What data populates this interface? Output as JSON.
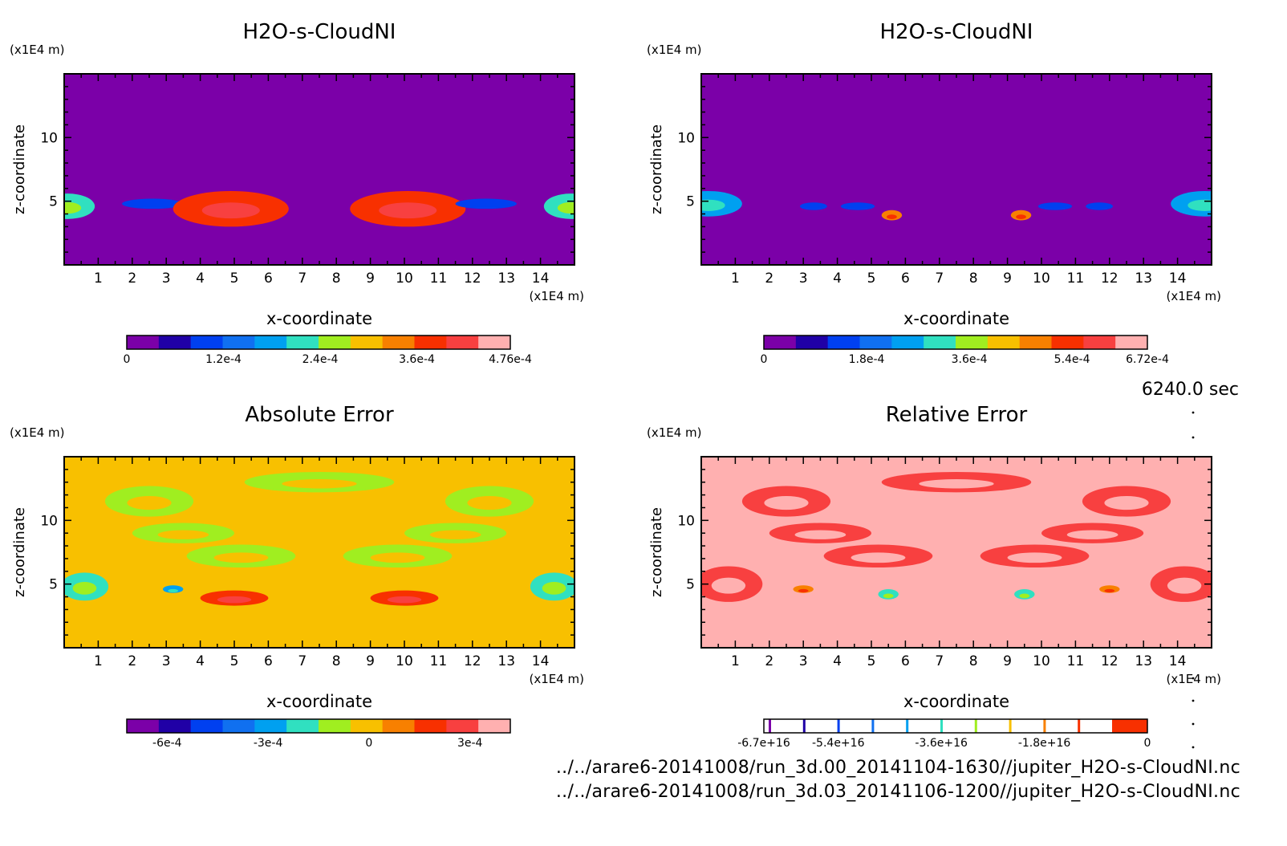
{
  "time_label": "6240.0 sec",
  "file_paths": [
    "../../arare6-20141008/run_3d.00_20141104-1630//jupiter_H2O-s-CloudNI.nc",
    "../../arare6-20141008/run_3d.03_20141106-1200//jupiter_H2O-s-CloudNI.nc"
  ],
  "chart_data": [
    {
      "type": "heatmap",
      "title": "H2O-s-CloudNI",
      "xlabel": "x-coordinate",
      "ylabel": "z-coordinate",
      "x_unit": "(x1E4 m)",
      "y_unit": "(x1E4 m)",
      "xlim": [
        0,
        15
      ],
      "ylim": [
        0,
        15
      ],
      "x_ticks": [
        1,
        2,
        3,
        4,
        5,
        6,
        7,
        8,
        9,
        10,
        11,
        12,
        13,
        14
      ],
      "y_ticks": [
        5,
        10
      ],
      "background_color": "#7b00a8",
      "colorbar": {
        "colors": [
          "#7b00a8",
          "#2000a6",
          "#0040f0",
          "#1070f0",
          "#00a0f0",
          "#30e0c0",
          "#a0ee20",
          "#f8c000",
          "#f88000",
          "#f83000",
          "#f84040",
          "#ffb0b0"
        ],
        "tick_labels": [
          "0",
          "1.2e-4",
          "2.4e-4",
          "3.6e-4",
          "4.76e-4"
        ],
        "tick_values": [
          0,
          0.00012,
          0.00024,
          0.00036,
          0.000476
        ],
        "range": [
          0,
          0.000476
        ]
      },
      "features": [
        {
          "x": 0.1,
          "z": 4.6,
          "rx": 0.8,
          "rz": 1.0,
          "level": 5
        },
        {
          "x": 2.6,
          "z": 4.8,
          "rx": 0.9,
          "rz": 0.4,
          "level": 2
        },
        {
          "x": 4.9,
          "z": 4.4,
          "rx": 1.7,
          "rz": 1.4,
          "level": 9
        },
        {
          "x": 10.1,
          "z": 4.4,
          "rx": 1.7,
          "rz": 1.4,
          "level": 9
        },
        {
          "x": 12.4,
          "z": 4.8,
          "rx": 0.9,
          "rz": 0.4,
          "level": 2
        },
        {
          "x": 14.9,
          "z": 4.6,
          "rx": 0.8,
          "rz": 1.0,
          "level": 5
        }
      ]
    },
    {
      "type": "heatmap",
      "title": "H2O-s-CloudNI",
      "xlabel": "x-coordinate",
      "ylabel": "z-coordinate",
      "x_unit": "(x1E4 m)",
      "y_unit": "(x1E4 m)",
      "xlim": [
        0,
        15
      ],
      "ylim": [
        0,
        15
      ],
      "x_ticks": [
        1,
        2,
        3,
        4,
        5,
        6,
        7,
        8,
        9,
        10,
        11,
        12,
        13,
        14
      ],
      "y_ticks": [
        5,
        10
      ],
      "background_color": "#7b00a8",
      "colorbar": {
        "colors": [
          "#7b00a8",
          "#2000a6",
          "#0040f0",
          "#1070f0",
          "#00a0f0",
          "#30e0c0",
          "#a0ee20",
          "#f8c000",
          "#f88000",
          "#f83000",
          "#f84040",
          "#ffb0b0"
        ],
        "tick_labels": [
          "0",
          "1.8e-4",
          "3.6e-4",
          "5.4e-4",
          "6.72e-4"
        ],
        "tick_values": [
          0,
          0.00018,
          0.00036,
          0.00054,
          0.000672
        ],
        "range": [
          0,
          0.000672
        ]
      },
      "features": [
        {
          "x": 0.2,
          "z": 4.8,
          "rx": 1.0,
          "rz": 1.0,
          "level": 4
        },
        {
          "x": 3.3,
          "z": 4.6,
          "rx": 0.4,
          "rz": 0.3,
          "level": 2
        },
        {
          "x": 4.6,
          "z": 4.6,
          "rx": 0.5,
          "rz": 0.3,
          "level": 2
        },
        {
          "x": 5.6,
          "z": 3.9,
          "rx": 0.3,
          "rz": 0.4,
          "level": 8
        },
        {
          "x": 9.4,
          "z": 3.9,
          "rx": 0.3,
          "rz": 0.4,
          "level": 8
        },
        {
          "x": 10.4,
          "z": 4.6,
          "rx": 0.5,
          "rz": 0.3,
          "level": 2
        },
        {
          "x": 11.7,
          "z": 4.6,
          "rx": 0.4,
          "rz": 0.3,
          "level": 2
        },
        {
          "x": 14.8,
          "z": 4.8,
          "rx": 1.0,
          "rz": 1.0,
          "level": 4
        }
      ]
    },
    {
      "type": "heatmap",
      "title": "Absolute Error",
      "xlabel": "x-coordinate",
      "ylabel": "z-coordinate",
      "x_unit": "(x1E4 m)",
      "y_unit": "(x1E4 m)",
      "xlim": [
        0,
        15
      ],
      "ylim": [
        0,
        15
      ],
      "x_ticks": [
        1,
        2,
        3,
        4,
        5,
        6,
        7,
        8,
        9,
        10,
        11,
        12,
        13,
        14
      ],
      "y_ticks": [
        5,
        10
      ],
      "background_color": "#f8c000",
      "colorbar": {
        "colors": [
          "#7b00a8",
          "#2000a6",
          "#0040f0",
          "#1070f0",
          "#00a0f0",
          "#30e0c0",
          "#a0ee20",
          "#f8c000",
          "#f88000",
          "#f83000",
          "#f84040",
          "#ffb0b0"
        ],
        "tick_labels": [
          "-6e-4",
          "-3e-4",
          "0",
          "3e-4"
        ],
        "tick_values": [
          -0.0006,
          -0.0003,
          0,
          0.0003
        ],
        "range": [
          -0.00072,
          0.00042
        ]
      },
      "features": [
        {
          "x": 2.5,
          "z": 11.5,
          "rx": 1.3,
          "rz": 1.2,
          "level": 6
        },
        {
          "x": 3.5,
          "z": 9.0,
          "rx": 1.5,
          "rz": 0.8,
          "level": 6
        },
        {
          "x": 5.2,
          "z": 7.2,
          "rx": 1.6,
          "rz": 0.9,
          "level": 6
        },
        {
          "x": 7.5,
          "z": 13.0,
          "rx": 2.2,
          "rz": 0.8,
          "level": 6
        },
        {
          "x": 9.8,
          "z": 7.2,
          "rx": 1.6,
          "rz": 0.9,
          "level": 6
        },
        {
          "x": 11.5,
          "z": 9.0,
          "rx": 1.5,
          "rz": 0.8,
          "level": 6
        },
        {
          "x": 12.5,
          "z": 11.5,
          "rx": 1.3,
          "rz": 1.2,
          "level": 6
        },
        {
          "x": 0.6,
          "z": 4.8,
          "rx": 0.7,
          "rz": 1.1,
          "level": 5
        },
        {
          "x": 3.2,
          "z": 4.6,
          "rx": 0.3,
          "rz": 0.3,
          "level": 4
        },
        {
          "x": 5.0,
          "z": 3.9,
          "rx": 1.0,
          "rz": 0.6,
          "level": 9
        },
        {
          "x": 10.0,
          "z": 3.9,
          "rx": 1.0,
          "rz": 0.6,
          "level": 9
        },
        {
          "x": 14.4,
          "z": 4.8,
          "rx": 0.7,
          "rz": 1.1,
          "level": 5
        }
      ]
    },
    {
      "type": "heatmap",
      "title": "Relative Error",
      "xlabel": "x-coordinate",
      "ylabel": "z-coordinate",
      "x_unit": "(x1E4 m)",
      "y_unit": "(x1E4 m)",
      "xlim": [
        0,
        15
      ],
      "ylim": [
        0,
        15
      ],
      "x_ticks": [
        1,
        2,
        3,
        4,
        5,
        6,
        7,
        8,
        9,
        10,
        11,
        12,
        13,
        14
      ],
      "y_ticks": [
        5,
        10
      ],
      "background_color": "#ffb0b0",
      "colorbar": {
        "colors": [
          "#7b00a8",
          "#2000a6",
          "#0040f0",
          "#1070f0",
          "#00a0f0",
          "#30e0c0",
          "#a0ee20",
          "#f8c000",
          "#f88000",
          "#f83000",
          "#f84040",
          "#ffb0b0"
        ],
        "tick_labels": [
          "-6.7e+16",
          "-5.4e+16",
          "-3.6e+16",
          "-1.8e+16",
          "0"
        ],
        "tick_values": [
          -6.7e+16,
          -5.4e+16,
          -3.6e+16,
          -1.8e+16,
          0
        ],
        "range": [
          -6.7e+16,
          0
        ]
      },
      "features": [
        {
          "x": 2.5,
          "z": 11.5,
          "rx": 1.3,
          "rz": 1.2,
          "level": 10
        },
        {
          "x": 3.5,
          "z": 9.0,
          "rx": 1.5,
          "rz": 0.8,
          "level": 10
        },
        {
          "x": 5.2,
          "z": 7.2,
          "rx": 1.6,
          "rz": 0.9,
          "level": 10
        },
        {
          "x": 7.5,
          "z": 13.0,
          "rx": 2.2,
          "rz": 0.8,
          "level": 10
        },
        {
          "x": 9.8,
          "z": 7.2,
          "rx": 1.6,
          "rz": 0.9,
          "level": 10
        },
        {
          "x": 11.5,
          "z": 9.0,
          "rx": 1.5,
          "rz": 0.8,
          "level": 10
        },
        {
          "x": 12.5,
          "z": 11.5,
          "rx": 1.3,
          "rz": 1.2,
          "level": 10
        },
        {
          "x": 0.8,
          "z": 5.0,
          "rx": 1.0,
          "rz": 1.4,
          "level": 10
        },
        {
          "x": 3.0,
          "z": 4.6,
          "rx": 0.3,
          "rz": 0.3,
          "level": 8
        },
        {
          "x": 5.5,
          "z": 4.2,
          "rx": 0.3,
          "rz": 0.4,
          "level": 5
        },
        {
          "x": 9.5,
          "z": 4.2,
          "rx": 0.3,
          "rz": 0.4,
          "level": 5
        },
        {
          "x": 12.0,
          "z": 4.6,
          "rx": 0.3,
          "rz": 0.3,
          "level": 8
        },
        {
          "x": 14.2,
          "z": 5.0,
          "rx": 1.0,
          "rz": 1.4,
          "level": 10
        }
      ]
    }
  ]
}
